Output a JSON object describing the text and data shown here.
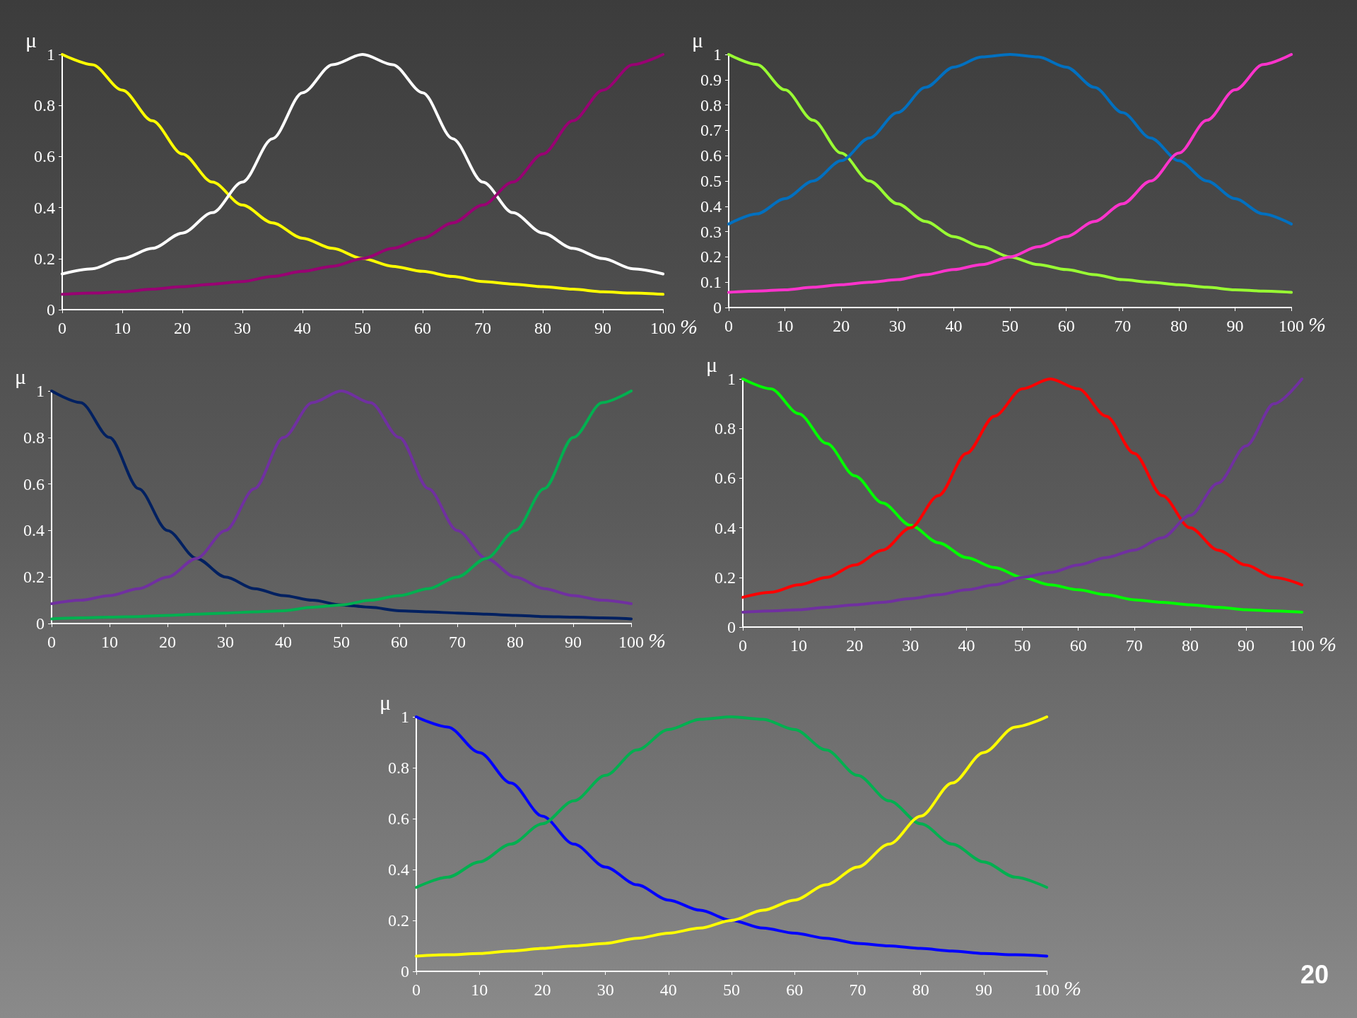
{
  "chart_data": [
    {
      "type": "line",
      "ylabel": "μ",
      "xlabel": "%",
      "x": [
        0,
        5,
        10,
        15,
        20,
        25,
        30,
        35,
        40,
        45,
        50,
        55,
        60,
        65,
        70,
        75,
        80,
        85,
        90,
        95,
        100
      ],
      "xlim": [
        0,
        100
      ],
      "xticks": [
        0,
        10,
        20,
        30,
        40,
        50,
        60,
        70,
        80,
        90,
        100
      ],
      "ylim": [
        0,
        1
      ],
      "yticks": [
        0,
        0.2,
        0.4,
        0.6,
        0.8,
        1
      ],
      "grid": false,
      "marker": "none",
      "line_style": "solid",
      "series": [
        {
          "color": "#ffff00",
          "values": [
            1,
            0.96,
            0.86,
            0.74,
            0.61,
            0.5,
            0.41,
            0.34,
            0.28,
            0.24,
            0.2,
            0.17,
            0.15,
            0.13,
            0.11,
            0.1,
            0.09,
            0.08,
            0.07,
            0.065,
            0.06
          ]
        },
        {
          "color": "#ffffff",
          "values": [
            0.14,
            0.16,
            0.2,
            0.24,
            0.3,
            0.38,
            0.5,
            0.67,
            0.85,
            0.96,
            1,
            0.96,
            0.85,
            0.67,
            0.5,
            0.38,
            0.3,
            0.24,
            0.2,
            0.16,
            0.14
          ]
        },
        {
          "color": "#990073",
          "values": [
            0.06,
            0.065,
            0.07,
            0.08,
            0.09,
            0.1,
            0.11,
            0.13,
            0.15,
            0.17,
            0.2,
            0.24,
            0.28,
            0.34,
            0.41,
            0.5,
            0.61,
            0.74,
            0.86,
            0.96,
            1
          ]
        }
      ]
    },
    {
      "type": "line",
      "ylabel": "μ",
      "xlabel": "%",
      "x": [
        0,
        5,
        10,
        15,
        20,
        25,
        30,
        35,
        40,
        45,
        50,
        55,
        60,
        65,
        70,
        75,
        80,
        85,
        90,
        95,
        100
      ],
      "xlim": [
        0,
        100
      ],
      "xticks": [
        0,
        10,
        20,
        30,
        40,
        50,
        60,
        70,
        80,
        90,
        100
      ],
      "ylim": [
        0,
        1
      ],
      "yticks": [
        0,
        0.1,
        0.2,
        0.3,
        0.4,
        0.5,
        0.6,
        0.7,
        0.8,
        0.9,
        1
      ],
      "grid": false,
      "marker": "none",
      "line_style": "solid",
      "series": [
        {
          "color": "#99ff33",
          "values": [
            1,
            0.96,
            0.86,
            0.74,
            0.61,
            0.5,
            0.41,
            0.34,
            0.28,
            0.24,
            0.2,
            0.17,
            0.15,
            0.13,
            0.11,
            0.1,
            0.09,
            0.08,
            0.07,
            0.065,
            0.06
          ]
        },
        {
          "color": "#0070c0",
          "values": [
            0.33,
            0.37,
            0.43,
            0.5,
            0.58,
            0.67,
            0.77,
            0.87,
            0.95,
            0.99,
            1,
            0.99,
            0.95,
            0.87,
            0.77,
            0.67,
            0.58,
            0.5,
            0.43,
            0.37,
            0.33
          ]
        },
        {
          "color": "#ff33cc",
          "values": [
            0.06,
            0.065,
            0.07,
            0.08,
            0.09,
            0.1,
            0.11,
            0.13,
            0.15,
            0.17,
            0.2,
            0.24,
            0.28,
            0.34,
            0.41,
            0.5,
            0.61,
            0.74,
            0.86,
            0.96,
            1
          ]
        }
      ]
    },
    {
      "type": "line",
      "ylabel": "μ",
      "xlabel": "%",
      "x": [
        0,
        5,
        10,
        15,
        20,
        25,
        30,
        35,
        40,
        45,
        50,
        55,
        60,
        65,
        70,
        75,
        80,
        85,
        90,
        95,
        100
      ],
      "xlim": [
        0,
        100
      ],
      "xticks": [
        0,
        10,
        20,
        30,
        40,
        50,
        60,
        70,
        80,
        90,
        100
      ],
      "ylim": [
        0,
        1
      ],
      "yticks": [
        0,
        0.2,
        0.4,
        0.6,
        0.8,
        1
      ],
      "grid": false,
      "marker": "none",
      "line_style": "solid",
      "series": [
        {
          "color": "#002060",
          "values": [
            1,
            0.95,
            0.8,
            0.58,
            0.4,
            0.28,
            0.2,
            0.15,
            0.12,
            0.1,
            0.08,
            0.07,
            0.055,
            0.05,
            0.045,
            0.04,
            0.035,
            0.03,
            0.027,
            0.024,
            0.02
          ]
        },
        {
          "color": "#7030a0",
          "values": [
            0.085,
            0.1,
            0.12,
            0.15,
            0.2,
            0.28,
            0.4,
            0.58,
            0.8,
            0.95,
            1,
            0.95,
            0.8,
            0.58,
            0.4,
            0.28,
            0.2,
            0.15,
            0.12,
            0.1,
            0.085
          ]
        },
        {
          "color": "#00b050",
          "values": [
            0.02,
            0.024,
            0.027,
            0.03,
            0.035,
            0.04,
            0.045,
            0.05,
            0.055,
            0.07,
            0.08,
            0.1,
            0.12,
            0.15,
            0.2,
            0.28,
            0.4,
            0.58,
            0.8,
            0.95,
            1
          ]
        }
      ]
    },
    {
      "type": "line",
      "ylabel": "μ",
      "xlabel": "%",
      "x": [
        0,
        5,
        10,
        15,
        20,
        25,
        30,
        35,
        40,
        45,
        50,
        55,
        60,
        65,
        70,
        75,
        80,
        85,
        90,
        95,
        100
      ],
      "xlim": [
        0,
        100
      ],
      "xticks": [
        0,
        10,
        20,
        30,
        40,
        50,
        60,
        70,
        80,
        90,
        100
      ],
      "ylim": [
        0,
        1
      ],
      "yticks": [
        0,
        0.2,
        0.4,
        0.6,
        0.8,
        1
      ],
      "grid": false,
      "marker": "none",
      "line_style": "solid",
      "series": [
        {
          "color": "#00ff00",
          "values": [
            1,
            0.96,
            0.86,
            0.74,
            0.61,
            0.5,
            0.41,
            0.34,
            0.28,
            0.24,
            0.2,
            0.17,
            0.15,
            0.13,
            0.11,
            0.1,
            0.09,
            0.08,
            0.07,
            0.065,
            0.06
          ]
        },
        {
          "color": "#ff0000",
          "values": [
            0.12,
            0.14,
            0.17,
            0.2,
            0.25,
            0.31,
            0.4,
            0.53,
            0.7,
            0.85,
            0.96,
            1,
            0.96,
            0.85,
            0.7,
            0.53,
            0.4,
            0.31,
            0.25,
            0.2,
            0.17
          ]
        },
        {
          "color": "#7030a0",
          "values": [
            0.06,
            0.065,
            0.07,
            0.08,
            0.09,
            0.1,
            0.115,
            0.13,
            0.15,
            0.17,
            0.2,
            0.22,
            0.25,
            0.28,
            0.31,
            0.36,
            0.45,
            0.58,
            0.73,
            0.9,
            1
          ]
        }
      ]
    },
    {
      "type": "line",
      "ylabel": "μ",
      "xlabel": "%",
      "x": [
        0,
        5,
        10,
        15,
        20,
        25,
        30,
        35,
        40,
        45,
        50,
        55,
        60,
        65,
        70,
        75,
        80,
        85,
        90,
        95,
        100
      ],
      "xlim": [
        0,
        100
      ],
      "xticks": [
        0,
        10,
        20,
        30,
        40,
        50,
        60,
        70,
        80,
        90,
        100
      ],
      "ylim": [
        0,
        1
      ],
      "yticks": [
        0,
        0.2,
        0.4,
        0.6,
        0.8,
        1
      ],
      "grid": false,
      "marker": "none",
      "line_style": "solid",
      "annotations": [
        "20"
      ],
      "series": [
        {
          "color": "#0000ff",
          "values": [
            1,
            0.96,
            0.86,
            0.74,
            0.61,
            0.5,
            0.41,
            0.34,
            0.28,
            0.24,
            0.2,
            0.17,
            0.15,
            0.13,
            0.11,
            0.1,
            0.09,
            0.08,
            0.07,
            0.065,
            0.06
          ]
        },
        {
          "color": "#00b050",
          "values": [
            0.33,
            0.37,
            0.43,
            0.5,
            0.58,
            0.67,
            0.77,
            0.87,
            0.95,
            0.99,
            1,
            0.99,
            0.95,
            0.87,
            0.77,
            0.67,
            0.58,
            0.5,
            0.43,
            0.37,
            0.33
          ]
        },
        {
          "color": "#ffff00",
          "values": [
            0.06,
            0.065,
            0.07,
            0.08,
            0.09,
            0.1,
            0.11,
            0.13,
            0.15,
            0.17,
            0.2,
            0.24,
            0.28,
            0.34,
            0.41,
            0.5,
            0.61,
            0.74,
            0.86,
            0.96,
            1
          ]
        }
      ]
    }
  ]
}
